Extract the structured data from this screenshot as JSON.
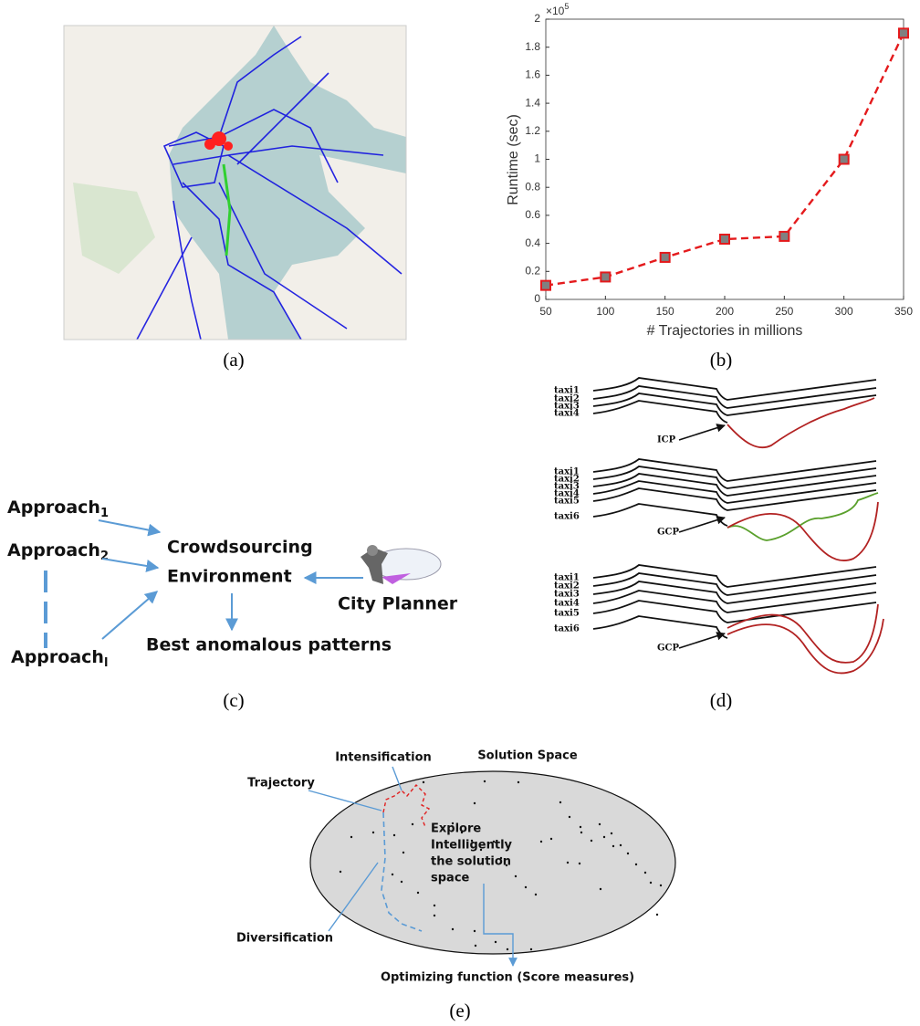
{
  "figure": {
    "captions": [
      "(a)",
      "(b)",
      "(c)",
      "(d)",
      "(e)"
    ]
  },
  "chart_data": {
    "type": "line",
    "y_label": "Runtime (sec)",
    "x_label": "# Trajectories in millions",
    "y_multiplier": {
      "base": "×10",
      "exponent": "5"
    },
    "x": [
      50,
      100,
      150,
      200,
      250,
      300,
      350
    ],
    "series": [
      {
        "color": "#e41a1c",
        "marker_color": "#808080",
        "values": [
          0.1,
          0.16,
          0.3,
          0.43,
          0.45,
          1.0,
          1.9
        ]
      }
    ],
    "xlim": [
      50,
      350
    ],
    "ylim": [
      0,
      2
    ],
    "xticks": [
      50,
      100,
      150,
      200,
      250,
      300,
      350
    ],
    "yticks": [
      0,
      0.2,
      0.4,
      0.6,
      0.8,
      1,
      1.2,
      1.4,
      1.6,
      1.8,
      2
    ],
    "grid": false
  },
  "crowdsourcing": {
    "approaches": [
      {
        "text": "Approach",
        "sub": "1"
      },
      {
        "text": "Approach",
        "sub": "2"
      },
      {
        "text": "Approach",
        "sub": "l"
      }
    ],
    "environment": [
      "Crowdsourcing",
      "Environment"
    ],
    "planner": "City Planner",
    "output": "Best anomalous patterns"
  },
  "taxi_groups": [
    {
      "taxis": [
        "taxi1",
        "taxi2",
        "taxi3",
        "taxi4"
      ],
      "point": "ICP"
    },
    {
      "taxis": [
        "taxi1",
        "taxi2",
        "taxi3",
        "taxi4",
        "taxi5",
        "taxi6"
      ],
      "point": "GCP"
    },
    {
      "taxis": [
        "taxi1",
        "taxi2",
        "taxi3",
        "taxi4",
        "taxi5",
        "taxi6"
      ],
      "point": "GCP"
    }
  ],
  "search": {
    "space": "Solution Space",
    "intensification": "Intensification",
    "trajectory": "Trajectory",
    "diversification": "Diversification",
    "explore": [
      "Explore",
      "Intelligently",
      "the solution",
      "space"
    ],
    "objective": "Optimizing function (Score measures)"
  }
}
